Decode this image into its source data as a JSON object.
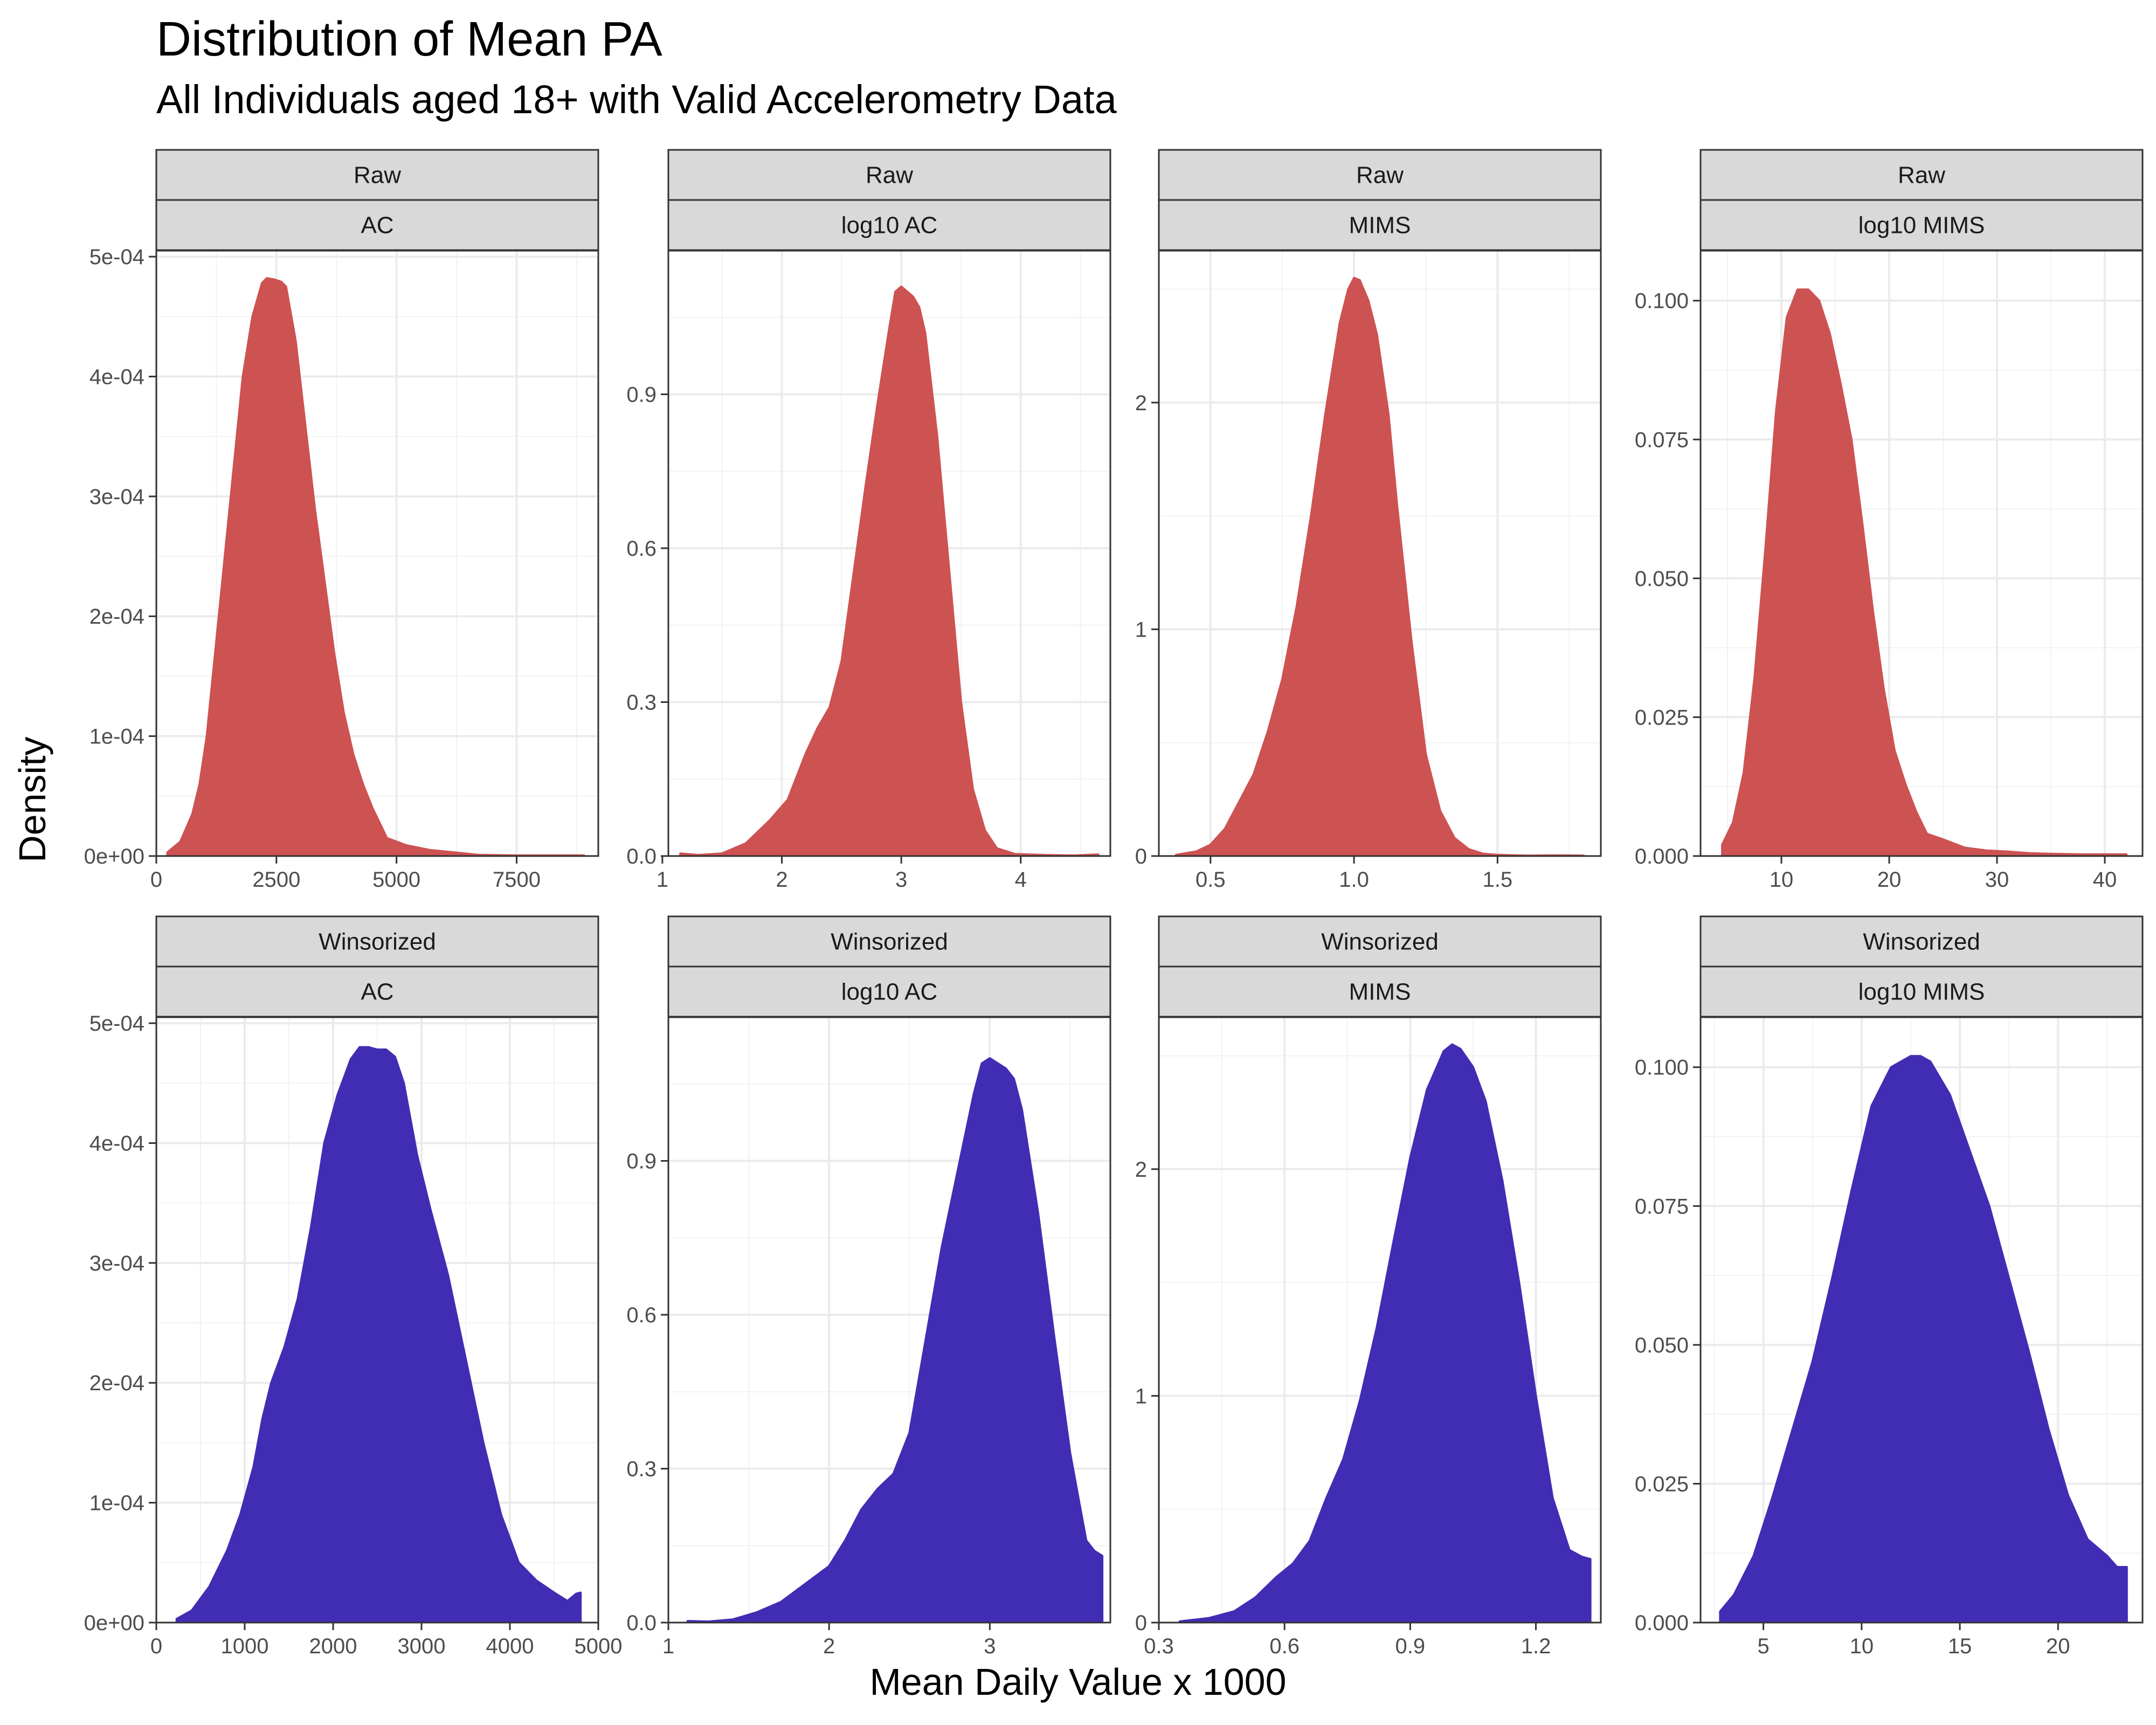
{
  "title": "Distribution of Mean PA",
  "subtitle": "All Individuals aged 18+ with Valid Accelerometry Data",
  "xlabel": "Mean Daily Value x 1000",
  "ylabel": "Density",
  "colors": {
    "raw": "#CD5252",
    "winsorized": "#412DB3",
    "strip_bg": "#D9D9D9",
    "grid": "#EBEBEB"
  },
  "chart_data": [
    {
      "type": "area",
      "row_label": "Raw",
      "facet_label": "AC",
      "fill": "raw",
      "xlim": [
        0,
        9200
      ],
      "ylim": [
        0,
        0.000505
      ],
      "x_ticks": [
        {
          "v": 0,
          "label": "0"
        },
        {
          "v": 2500,
          "label": "2500"
        },
        {
          "v": 5000,
          "label": "5000"
        },
        {
          "v": 7500,
          "label": "7500"
        }
      ],
      "y_ticks": [
        {
          "v": 0,
          "label": "0e+00"
        },
        {
          "v": 0.0001,
          "label": "1e-04"
        },
        {
          "v": 0.0002,
          "label": "2e-04"
        },
        {
          "v": 0.0003,
          "label": "3e-04"
        },
        {
          "v": 0.0004,
          "label": "4e-04"
        },
        {
          "v": 0.0005,
          "label": "5e-04"
        }
      ],
      "x": [
        230,
        500,
        750,
        900,
        1050,
        1200,
        1400,
        1600,
        1800,
        2000,
        2200,
        2300,
        2450,
        2600,
        2700,
        2900,
        3100,
        3300,
        3500,
        3700,
        3900,
        4100,
        4300,
        4500,
        4800,
        5200,
        5700,
        6200,
        6700,
        7500,
        8200,
        8900
      ],
      "y": [
        3e-06,
        1.2e-05,
        3.5e-05,
        6e-05,
        0.0001,
        0.00016,
        0.00024,
        0.00032,
        0.0004,
        0.00045,
        0.000478,
        0.000482,
        0.000481,
        0.000479,
        0.000475,
        0.00043,
        0.00036,
        0.00029,
        0.00023,
        0.00017,
        0.00012,
        8.5e-05,
        6e-05,
        4e-05,
        1.5e-05,
        9e-06,
        5e-06,
        3e-06,
        1e-06,
        5e-07,
        5e-07,
        5e-07
      ]
    },
    {
      "type": "area",
      "row_label": "Raw",
      "facet_label": "log10 AC",
      "fill": "raw",
      "xlim": [
        1.05,
        4.75
      ],
      "ylim": [
        0,
        1.18
      ],
      "x_ticks": [
        {
          "v": 1,
          "label": "1"
        },
        {
          "v": 2,
          "label": "2"
        },
        {
          "v": 3,
          "label": "3"
        },
        {
          "v": 4,
          "label": "4"
        }
      ],
      "y_ticks": [
        {
          "v": 0,
          "label": "0.0"
        },
        {
          "v": 0.3,
          "label": "0.3"
        },
        {
          "v": 0.6,
          "label": "0.6"
        },
        {
          "v": 0.9,
          "label": "0.9"
        }
      ],
      "x": [
        1.15,
        1.3,
        1.5,
        1.7,
        1.9,
        2.05,
        2.2,
        2.3,
        2.4,
        2.5,
        2.6,
        2.7,
        2.8,
        2.9,
        2.95,
        3.0,
        3.05,
        3.1,
        3.15,
        3.2,
        3.3,
        3.4,
        3.5,
        3.6,
        3.7,
        3.8,
        3.95,
        4.2,
        4.45,
        4.65
      ],
      "y": [
        0.005,
        0.002,
        0.005,
        0.025,
        0.07,
        0.11,
        0.2,
        0.25,
        0.29,
        0.38,
        0.55,
        0.72,
        0.88,
        1.03,
        1.1,
        1.11,
        1.1,
        1.09,
        1.07,
        1.02,
        0.82,
        0.56,
        0.3,
        0.13,
        0.05,
        0.015,
        0.004,
        0.002,
        0.001,
        0.003
      ]
    },
    {
      "type": "area",
      "row_label": "Raw",
      "facet_label": "MIMS",
      "fill": "raw",
      "xlim": [
        0.32,
        1.86
      ],
      "ylim": [
        0,
        2.67
      ],
      "x_ticks": [
        {
          "v": 0.5,
          "label": "0.5"
        },
        {
          "v": 1.0,
          "label": "1.0"
        },
        {
          "v": 1.5,
          "label": "1.5"
        }
      ],
      "y_ticks": [
        {
          "v": 0,
          "label": "0"
        },
        {
          "v": 1,
          "label": "1"
        },
        {
          "v": 2,
          "label": "2"
        }
      ],
      "x": [
        0.38,
        0.45,
        0.5,
        0.55,
        0.6,
        0.65,
        0.7,
        0.75,
        0.8,
        0.85,
        0.9,
        0.95,
        0.98,
        1.0,
        1.02,
        1.05,
        1.08,
        1.12,
        1.15,
        1.2,
        1.25,
        1.3,
        1.35,
        1.4,
        1.45,
        1.5,
        1.6,
        1.7,
        1.8
      ],
      "y": [
        0.005,
        0.02,
        0.05,
        0.12,
        0.24,
        0.36,
        0.55,
        0.78,
        1.1,
        1.5,
        1.95,
        2.35,
        2.5,
        2.55,
        2.54,
        2.45,
        2.3,
        1.95,
        1.55,
        0.95,
        0.45,
        0.2,
        0.08,
        0.03,
        0.01,
        0.005,
        0.002,
        0.003,
        0.002
      ]
    },
    {
      "type": "area",
      "row_label": "Raw",
      "facet_label": "log10 MIMS",
      "fill": "raw",
      "xlim": [
        2.5,
        43.5
      ],
      "ylim": [
        0,
        0.109
      ],
      "x_ticks": [
        {
          "v": 10,
          "label": "10"
        },
        {
          "v": 20,
          "label": "20"
        },
        {
          "v": 30,
          "label": "30"
        },
        {
          "v": 40,
          "label": "40"
        }
      ],
      "y_ticks": [
        {
          "v": 0,
          "label": "0.000"
        },
        {
          "v": 0.025,
          "label": "0.025"
        },
        {
          "v": 0.05,
          "label": "0.050"
        },
        {
          "v": 0.075,
          "label": "0.075"
        },
        {
          "v": 0.1,
          "label": "0.100"
        }
      ],
      "x": [
        4.5,
        5.5,
        6.5,
        7.5,
        8.5,
        9.5,
        10.5,
        11.5,
        12.5,
        13.5,
        14.5,
        15.5,
        16.5,
        17.5,
        18.5,
        19.5,
        20.5,
        21.5,
        22.5,
        23.5,
        25,
        27,
        29,
        31,
        33,
        35,
        38,
        42
      ],
      "y": [
        0.002,
        0.006,
        0.015,
        0.032,
        0.055,
        0.08,
        0.097,
        0.102,
        0.102,
        0.1,
        0.094,
        0.085,
        0.075,
        0.06,
        0.044,
        0.03,
        0.019,
        0.013,
        0.008,
        0.004,
        0.003,
        0.0015,
        0.001,
        0.0008,
        0.0005,
        0.0004,
        0.0003,
        0.0003
      ]
    },
    {
      "type": "area",
      "row_label": "Winsorized",
      "facet_label": "AC",
      "fill": "winsorized",
      "xlim": [
        0,
        5000
      ],
      "ylim": [
        0,
        0.000505
      ],
      "x_ticks": [
        {
          "v": 0,
          "label": "0"
        },
        {
          "v": 1000,
          "label": "1000"
        },
        {
          "v": 2000,
          "label": "2000"
        },
        {
          "v": 3000,
          "label": "3000"
        },
        {
          "v": 4000,
          "label": "4000"
        },
        {
          "v": 5000,
          "label": "5000"
        }
      ],
      "y_ticks": [
        {
          "v": 0,
          "label": "0e+00"
        },
        {
          "v": 0.0001,
          "label": "1e-04"
        },
        {
          "v": 0.0002,
          "label": "2e-04"
        },
        {
          "v": 0.0003,
          "label": "3e-04"
        },
        {
          "v": 0.0004,
          "label": "4e-04"
        },
        {
          "v": 0.0005,
          "label": "5e-04"
        }
      ],
      "x": [
        230,
        400,
        600,
        800,
        950,
        1100,
        1200,
        1300,
        1450,
        1600,
        1750,
        1900,
        2050,
        2200,
        2300,
        2400,
        2500,
        2600,
        2700,
        2800,
        2950,
        3100,
        3300,
        3500,
        3700,
        3900,
        4100,
        4300,
        4500,
        4650,
        4750,
        4800
      ],
      "y": [
        3e-06,
        1e-05,
        3e-05,
        6e-05,
        9e-05,
        0.00013,
        0.00017,
        0.0002,
        0.00023,
        0.00027,
        0.00033,
        0.0004,
        0.00044,
        0.00047,
        0.00048,
        0.00048,
        0.000478,
        0.000478,
        0.000472,
        0.00045,
        0.00039,
        0.000345,
        0.00029,
        0.00022,
        0.00015,
        9e-05,
        5e-05,
        3.5e-05,
        2.5e-05,
        1.8e-05,
        2.4e-05,
        2.5e-05
      ]
    },
    {
      "type": "area",
      "row_label": "Winsorized",
      "facet_label": "log10 AC",
      "fill": "winsorized",
      "xlim": [
        1.0,
        3.75
      ],
      "ylim": [
        0,
        1.18
      ],
      "x_ticks": [
        {
          "v": 1,
          "label": "1"
        },
        {
          "v": 2,
          "label": "2"
        },
        {
          "v": 3,
          "label": "3"
        }
      ],
      "y_ticks": [
        {
          "v": 0,
          "label": "0.0"
        },
        {
          "v": 0.3,
          "label": "0.3"
        },
        {
          "v": 0.6,
          "label": "0.6"
        },
        {
          "v": 0.9,
          "label": "0.9"
        }
      ],
      "x": [
        1.12,
        1.25,
        1.4,
        1.55,
        1.7,
        1.85,
        2.0,
        2.1,
        2.2,
        2.3,
        2.4,
        2.5,
        2.6,
        2.7,
        2.8,
        2.9,
        2.95,
        3.0,
        3.05,
        3.1,
        3.15,
        3.2,
        3.3,
        3.4,
        3.5,
        3.6,
        3.65,
        3.7
      ],
      "y": [
        0.003,
        0.002,
        0.006,
        0.02,
        0.04,
        0.075,
        0.11,
        0.16,
        0.22,
        0.26,
        0.29,
        0.37,
        0.55,
        0.73,
        0.88,
        1.03,
        1.09,
        1.1,
        1.09,
        1.08,
        1.06,
        1.0,
        0.8,
        0.56,
        0.33,
        0.16,
        0.14,
        0.13
      ]
    },
    {
      "type": "area",
      "row_label": "Winsorized",
      "facet_label": "MIMS",
      "fill": "winsorized",
      "xlim": [
        0.3,
        1.355
      ],
      "ylim": [
        0,
        2.67
      ],
      "x_ticks": [
        {
          "v": 0.3,
          "label": "0.3"
        },
        {
          "v": 0.6,
          "label": "0.6"
        },
        {
          "v": 0.9,
          "label": "0.9"
        },
        {
          "v": 1.2,
          "label": "1.2"
        }
      ],
      "y_ticks": [
        {
          "v": 0,
          "label": "0"
        },
        {
          "v": 1,
          "label": "1"
        },
        {
          "v": 2,
          "label": "2"
        }
      ],
      "x": [
        0.35,
        0.42,
        0.48,
        0.53,
        0.58,
        0.62,
        0.66,
        0.7,
        0.74,
        0.78,
        0.82,
        0.86,
        0.9,
        0.94,
        0.98,
        1.0,
        1.02,
        1.05,
        1.08,
        1.12,
        1.16,
        1.2,
        1.24,
        1.28,
        1.31,
        1.33
      ],
      "y": [
        0.005,
        0.02,
        0.05,
        0.11,
        0.2,
        0.26,
        0.36,
        0.55,
        0.72,
        0.98,
        1.3,
        1.68,
        2.05,
        2.35,
        2.52,
        2.55,
        2.53,
        2.45,
        2.3,
        1.95,
        1.5,
        1.0,
        0.55,
        0.32,
        0.29,
        0.28
      ]
    },
    {
      "type": "area",
      "row_label": "Winsorized",
      "facet_label": "log10 MIMS",
      "fill": "winsorized",
      "xlim": [
        1.8,
        24.3
      ],
      "ylim": [
        0,
        0.109
      ],
      "x_ticks": [
        {
          "v": 5,
          "label": "5"
        },
        {
          "v": 10,
          "label": "10"
        },
        {
          "v": 15,
          "label": "15"
        },
        {
          "v": 20,
          "label": "20"
        }
      ],
      "y_ticks": [
        {
          "v": 0,
          "label": "0.000"
        },
        {
          "v": 0.025,
          "label": "0.025"
        },
        {
          "v": 0.05,
          "label": "0.050"
        },
        {
          "v": 0.075,
          "label": "0.075"
        },
        {
          "v": 0.1,
          "label": "0.100"
        }
      ],
      "x": [
        2.8,
        3.5,
        4.5,
        5.5,
        6.5,
        7.5,
        8.5,
        9.5,
        10.5,
        11.5,
        12.5,
        13.0,
        13.5,
        14.5,
        15.5,
        16.5,
        17.5,
        18.5,
        19.5,
        20.5,
        21.5,
        22.5,
        23.0,
        23.5
      ],
      "y": [
        0.002,
        0.005,
        0.012,
        0.023,
        0.035,
        0.047,
        0.062,
        0.078,
        0.093,
        0.1,
        0.102,
        0.102,
        0.101,
        0.095,
        0.085,
        0.075,
        0.062,
        0.049,
        0.035,
        0.023,
        0.015,
        0.012,
        0.01,
        0.01
      ]
    }
  ]
}
